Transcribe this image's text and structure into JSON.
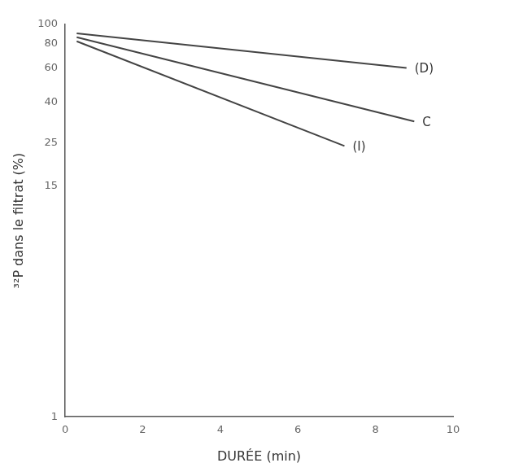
{
  "chart_data": {
    "type": "line",
    "x_label": "DURÉE (min)",
    "y_label": "³²P dans le filtrat (%)",
    "log": "y",
    "grid": false,
    "xlim": [
      0,
      10
    ],
    "xticks": [
      0,
      2,
      4,
      6,
      8,
      10
    ],
    "ylim": [
      1,
      100
    ],
    "yticks": [
      1,
      15,
      25,
      40,
      60,
      80,
      100
    ],
    "series": [
      {
        "name": "(D)",
        "color": "#444444",
        "x": [
          0.3,
          8.8
        ],
        "values": [
          90,
          60
        ]
      },
      {
        "name": "C",
        "color": "#444444",
        "x": [
          0.3,
          9.0
        ],
        "values": [
          86,
          32
        ]
      },
      {
        "name": "(I)",
        "color": "#444444",
        "x": [
          0.3,
          7.2
        ],
        "values": [
          82,
          24
        ]
      }
    ]
  }
}
